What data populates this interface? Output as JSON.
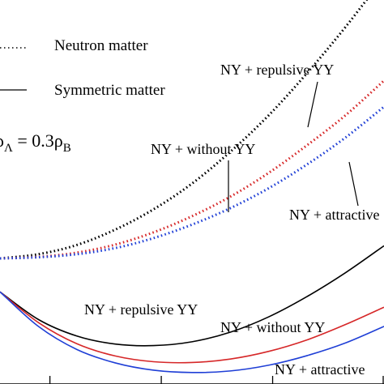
{
  "chart_data": {
    "type": "line",
    "title": "",
    "xlabel": "",
    "ylabel": "",
    "x_range": [
      0.0,
      1.0
    ],
    "y_range": [
      0.0,
      1.0
    ],
    "grid": false,
    "legend": {
      "placement": "top-left",
      "entries": [
        {
          "style": "dotted",
          "label": "Neutron matter"
        },
        {
          "style": "solid",
          "label": "Symmetric matter"
        }
      ]
    },
    "condition_label": {
      "prefix": "ρ",
      "prefix_sub": "Λ",
      "middle": " = 0.3ρ",
      "suffix_sub": "B"
    },
    "series": [
      {
        "name": "NY + repulsive YY",
        "matter": "Neutron matter",
        "style": "dotted",
        "color": "#000000",
        "x": [
          0.0,
          0.1,
          0.2,
          0.3,
          0.4,
          0.5,
          0.6,
          0.7,
          0.8,
          0.9,
          1.0
        ],
        "y": [
          0.327,
          0.338,
          0.362,
          0.402,
          0.455,
          0.522,
          0.605,
          0.7,
          0.81,
          0.93,
          1.06
        ]
      },
      {
        "name": "NY + without YY",
        "matter": "Neutron matter",
        "style": "dotted",
        "color": "#d62728",
        "x": [
          0.0,
          0.1,
          0.2,
          0.3,
          0.4,
          0.5,
          0.6,
          0.7,
          0.8,
          0.9,
          1.0
        ],
        "y": [
          0.327,
          0.331,
          0.342,
          0.363,
          0.395,
          0.437,
          0.488,
          0.55,
          0.622,
          0.7,
          0.79
        ]
      },
      {
        "name": "NY + attractive",
        "matter": "Neutron matter",
        "style": "dotted",
        "color": "#1f3fd6",
        "x": [
          0.0,
          0.1,
          0.2,
          0.3,
          0.4,
          0.5,
          0.6,
          0.7,
          0.8,
          0.9,
          1.0
        ],
        "y": [
          0.327,
          0.33,
          0.338,
          0.354,
          0.38,
          0.415,
          0.458,
          0.51,
          0.572,
          0.642,
          0.722
        ]
      },
      {
        "name": "NY + repulsive YY",
        "matter": "Symmetric matter",
        "style": "solid",
        "color": "#000000",
        "x": [
          0.0,
          0.1,
          0.2,
          0.3,
          0.4,
          0.5,
          0.6,
          0.7,
          0.8,
          0.9,
          1.0
        ],
        "y": [
          0.24,
          0.168,
          0.125,
          0.104,
          0.1,
          0.11,
          0.135,
          0.175,
          0.228,
          0.29,
          0.36
        ]
      },
      {
        "name": "NY + without YY",
        "matter": "Symmetric matter",
        "style": "solid",
        "color": "#d62728",
        "x": [
          0.0,
          0.1,
          0.2,
          0.3,
          0.4,
          0.5,
          0.6,
          0.7,
          0.8,
          0.9,
          1.0
        ],
        "y": [
          0.24,
          0.16,
          0.105,
          0.073,
          0.058,
          0.056,
          0.065,
          0.085,
          0.115,
          0.155,
          0.2
        ]
      },
      {
        "name": "NY + attractive",
        "matter": "Symmetric matter",
        "style": "solid",
        "color": "#1f3fd6",
        "x": [
          0.0,
          0.1,
          0.2,
          0.3,
          0.4,
          0.5,
          0.6,
          0.7,
          0.8,
          0.9,
          1.0
        ],
        "y": [
          0.24,
          0.15,
          0.09,
          0.055,
          0.036,
          0.03,
          0.034,
          0.049,
          0.074,
          0.107,
          0.15
        ]
      }
    ],
    "annotations": [
      {
        "text": "NY + repulsive YY",
        "series_index": 0,
        "target_x": 0.8
      },
      {
        "text": "NY + without YY",
        "series_index": 1,
        "target_x": 0.59
      },
      {
        "text": "NY + attractive",
        "series_index": 2,
        "target_x": 0.92
      },
      {
        "text": "NY + repulsive YY",
        "series_index": 3
      },
      {
        "text": "NY + without YY",
        "series_index": 4
      },
      {
        "text": "NY + attractive",
        "series_index": 5
      }
    ],
    "x_ticks": [
      0.13,
      0.42,
      0.71,
      1.0
    ]
  }
}
